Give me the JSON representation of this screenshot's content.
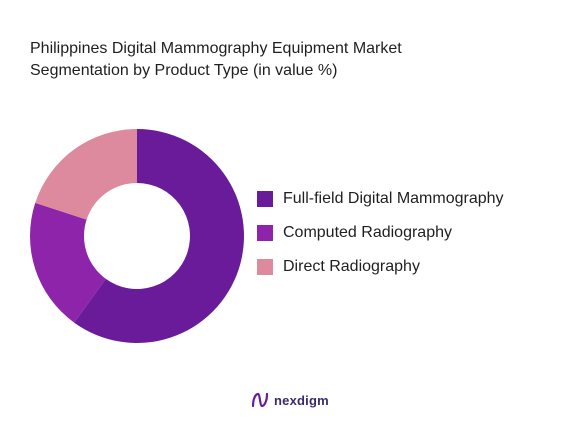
{
  "chart_data": {
    "type": "pie",
    "variant": "donut",
    "title_lines": [
      "Philippines Digital Mammography Equipment Market",
      "Segmentation by Product Type (in value %)"
    ],
    "categories": [
      "Full-field Digital Mammography",
      "Computed Radiography",
      "Direct Radiography"
    ],
    "values": [
      60,
      20,
      20
    ],
    "colors": [
      "#6a1b9a",
      "#8e24aa",
      "#dd899e"
    ],
    "legend_position": "right"
  },
  "brand": {
    "name": "nexdigm",
    "accent": "#6a1b9a"
  }
}
